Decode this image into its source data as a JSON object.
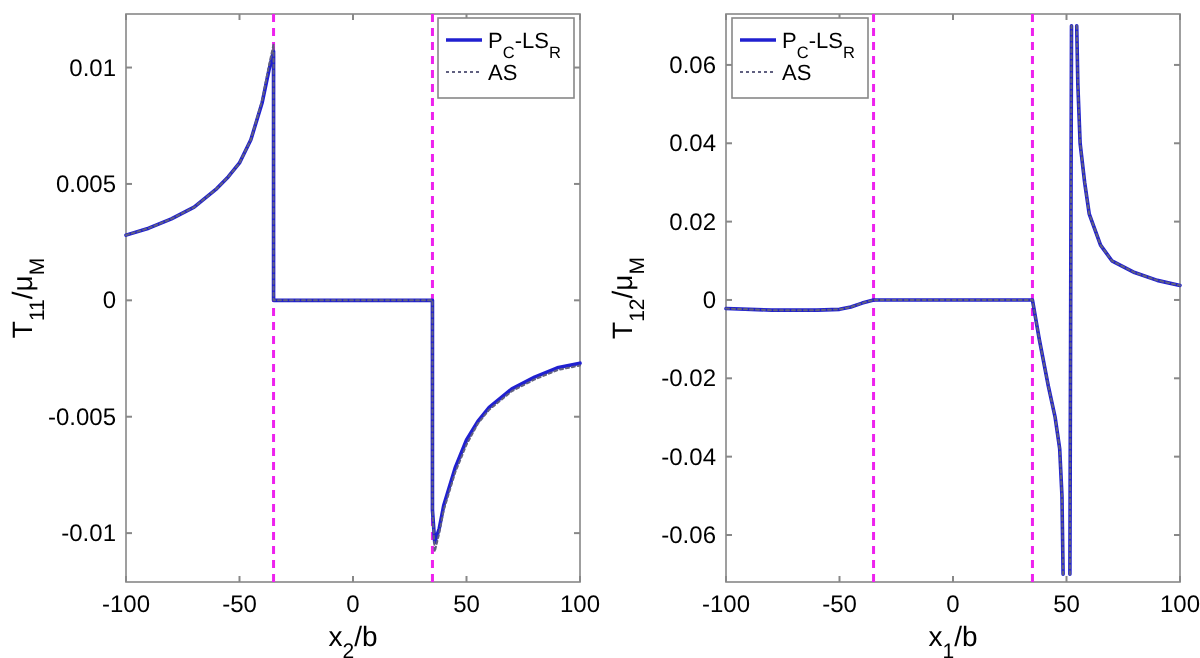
{
  "chart_data": [
    {
      "type": "line",
      "xlabel": "x$_{2}$/b",
      "ylabel": "T$_{11}$/μ$_{M}$",
      "xlim": [
        -100,
        100
      ],
      "ylim": [
        -0.0121,
        0.0123
      ],
      "xticks": [
        -100,
        -50,
        0,
        50,
        100
      ],
      "yticks": [
        -0.01,
        -0.005,
        0,
        0.005,
        0.01
      ],
      "legend": "top right",
      "grid": false,
      "series": [
        {
          "name": "P$_{C}$-LS$_{R}$",
          "color": "#2020d0",
          "line_style": "solid",
          "x": [
            -100,
            -90,
            -80,
            -70,
            -60,
            -55,
            -50,
            -45,
            -40,
            -37,
            -35,
            -35,
            35,
            35,
            36,
            38,
            40,
            45,
            50,
            55,
            60,
            70,
            80,
            90,
            100
          ],
          "values": [
            0.0028,
            0.0031,
            0.0035,
            0.004,
            0.0048,
            0.0053,
            0.0059,
            0.0069,
            0.0085,
            0.0099,
            0.0107,
            0,
            0,
            -0.009,
            -0.0104,
            -0.0098,
            -0.0088,
            -0.0072,
            -0.006,
            -0.0052,
            -0.0046,
            -0.0038,
            -0.0033,
            -0.0029,
            -0.0027
          ]
        },
        {
          "name": "AS",
          "color": "#606080",
          "line_style": "dotted",
          "x": [
            -100,
            -90,
            -80,
            -70,
            -60,
            -55,
            -50,
            -45,
            -40,
            -37,
            -35,
            -35,
            35,
            35,
            36,
            38,
            40,
            45,
            50,
            55,
            60,
            70,
            80,
            90,
            100
          ],
          "values": [
            0.0028,
            0.0031,
            0.0035,
            0.004,
            0.0048,
            0.0053,
            0.0059,
            0.0069,
            0.0086,
            0.0101,
            0.011,
            0,
            0,
            -0.009,
            -0.0108,
            -0.01,
            -0.009,
            -0.0074,
            -0.0062,
            -0.0053,
            -0.0047,
            -0.0039,
            -0.0034,
            -0.003,
            -0.0028
          ]
        }
      ],
      "ref_lines": [
        {
          "axis": "x",
          "value": -35,
          "color": "#ee22ee",
          "line_style": "dashed"
        },
        {
          "axis": "x",
          "value": 35,
          "color": "#ee22ee",
          "line_style": "dashed"
        }
      ]
    },
    {
      "type": "line",
      "xlabel": "x$_{1}$/b",
      "ylabel": "T$_{12}$/μ$_{M}$",
      "xlim": [
        -100,
        100
      ],
      "ylim": [
        -0.072,
        0.073
      ],
      "xticks": [
        -100,
        -50,
        0,
        50,
        100
      ],
      "yticks": [
        -0.06,
        -0.04,
        -0.02,
        0,
        0.02,
        0.04,
        0.06
      ],
      "legend": "top left",
      "grid": false,
      "series": [
        {
          "name": "P$_{C}$-LS$_{R}$",
          "color": "#2020d0",
          "line_style": "solid",
          "x": [
            -100,
            -80,
            -60,
            -50,
            -45,
            -40,
            -35,
            35,
            38,
            42,
            45,
            47,
            48,
            48.5,
            50,
            51.5,
            52.2,
            53,
            54.5,
            55,
            56,
            58,
            60,
            65,
            70,
            80,
            90,
            100
          ],
          "values": [
            -0.0022,
            -0.0026,
            -0.0026,
            -0.0024,
            -0.0018,
            -0.0008,
            0,
            0,
            -0.01,
            -0.022,
            -0.03,
            -0.038,
            -0.05,
            -0.07,
            null,
            -0.07,
            0.07,
            null,
            0.07,
            0.055,
            0.04,
            0.03,
            0.022,
            0.014,
            0.01,
            0.007,
            0.005,
            0.0037
          ]
        },
        {
          "name": "AS",
          "color": "#606080",
          "line_style": "dotted",
          "x": [
            -100,
            -80,
            -60,
            -50,
            -45,
            -40,
            -35,
            35,
            38,
            42,
            45,
            47,
            48,
            48.5,
            50,
            51.5,
            52.2,
            53,
            54.5,
            55,
            56,
            58,
            60,
            65,
            70,
            80,
            90,
            100
          ],
          "values": [
            -0.0022,
            -0.0026,
            -0.0026,
            -0.0024,
            -0.0018,
            -0.0008,
            0,
            0,
            -0.01,
            -0.022,
            -0.03,
            -0.038,
            -0.05,
            -0.07,
            null,
            -0.07,
            0.07,
            null,
            0.07,
            0.055,
            0.04,
            0.03,
            0.022,
            0.014,
            0.01,
            0.007,
            0.005,
            0.0037
          ]
        }
      ],
      "ref_lines": [
        {
          "axis": "x",
          "value": -35,
          "color": "#ee22ee",
          "line_style": "dashed"
        },
        {
          "axis": "x",
          "value": 35,
          "color": "#ee22ee",
          "line_style": "dashed"
        }
      ]
    }
  ]
}
